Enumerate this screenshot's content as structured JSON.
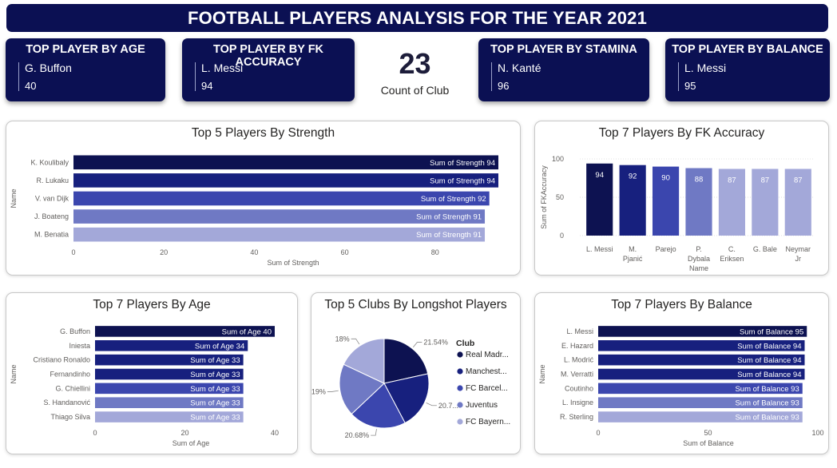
{
  "header": {
    "title": "FOOTBALL PLAYERS ANALYSIS FOR THE YEAR 2021"
  },
  "colors": {
    "navy": "#0b1053",
    "palette": [
      "#0d1251",
      "#17207e",
      "#3b46ae",
      "#6f79c4",
      "#a3a8d9"
    ]
  },
  "kpis": [
    {
      "title": "TOP PLAYER BY AGE",
      "name": "G. Buffon",
      "value": "40"
    },
    {
      "title": "TOP PLAYER BY FK ACCURACY",
      "name": "L. Messi",
      "value": "94"
    },
    {
      "title": "TOP PLAYER BY STAMINA",
      "name": "N. Kanté",
      "value": "96"
    },
    {
      "title": "TOP PLAYER BY BALANCE",
      "name": "L. Messi",
      "value": "95"
    }
  ],
  "count_card": {
    "value": "23",
    "label": "Count of Club"
  },
  "chart_data": [
    {
      "id": "strength",
      "type": "bar",
      "orientation": "horizontal",
      "title": "Top 5 Players By Strength",
      "xlabel": "Sum of Strength",
      "ylabel": "Name",
      "label_prefix": "Sum of Strength",
      "categories": [
        "K. Koulibaly",
        "R. Lukaku",
        "V. van Dijk",
        "J. Boateng",
        "M. Benatia"
      ],
      "values": [
        94,
        94,
        92,
        91,
        91
      ],
      "xlim": [
        0,
        94
      ],
      "xticks": [
        0,
        20,
        40,
        60,
        80
      ]
    },
    {
      "id": "fk",
      "type": "bar",
      "orientation": "vertical",
      "title": "Top 7 Players By FK Accuracy",
      "xlabel": "Name",
      "ylabel": "Sum of FKAccuracy",
      "categories": [
        [
          "L. Messi"
        ],
        [
          "M.",
          "Pjanić"
        ],
        [
          "Parejo"
        ],
        [
          "P.",
          "Dybala"
        ],
        [
          "C.",
          "Eriksen"
        ],
        [
          "G. Bale"
        ],
        [
          "Neymar",
          "Jr"
        ]
      ],
      "values": [
        94,
        92,
        90,
        88,
        87,
        87,
        87
      ],
      "ylim": [
        0,
        100
      ],
      "yticks": [
        0,
        50,
        100
      ],
      "grid": true
    },
    {
      "id": "age",
      "type": "bar",
      "orientation": "horizontal",
      "title": "Top 7 Players By Age",
      "xlabel": "Sum of Age",
      "ylabel": "Name",
      "label_prefix": "Sum of Age",
      "categories": [
        "G. Buffon",
        "Iniesta",
        "Cristiano Ronaldo",
        "Fernandinho",
        "G. Chiellini",
        "S. Handanović",
        "Thiago Silva"
      ],
      "values": [
        40,
        34,
        33,
        33,
        33,
        33,
        33
      ],
      "xlim": [
        0,
        40
      ],
      "xticks": [
        0,
        20,
        40
      ]
    },
    {
      "id": "clubs",
      "type": "pie",
      "title": "Top 5 Clubs By Longshot Players",
      "legend_title": "Club",
      "legend_position": "right",
      "labels": [
        "Real Madr...",
        "Manchest...",
        "FC Barcel...",
        "Juventus",
        "FC Bayern..."
      ],
      "values": [
        21.54,
        20.7,
        20.68,
        19,
        18
      ],
      "slice_labels": [
        "21.54%",
        "20.7...",
        "20.68%",
        "19%",
        "18%"
      ]
    },
    {
      "id": "balance",
      "type": "bar",
      "orientation": "horizontal",
      "title": "Top 7 Players By Balance",
      "xlabel": "Sum of Balance",
      "ylabel": "Name",
      "label_prefix": "Sum of Balance",
      "categories": [
        "L. Messi",
        "E. Hazard",
        "L. Modrić",
        "M. Verratti",
        "Coutinho",
        "L. Insigne",
        "R. Sterling"
      ],
      "values": [
        95,
        94,
        94,
        94,
        93,
        93,
        93
      ],
      "xlim": [
        0,
        100
      ],
      "xticks": [
        0,
        50,
        100
      ]
    }
  ]
}
